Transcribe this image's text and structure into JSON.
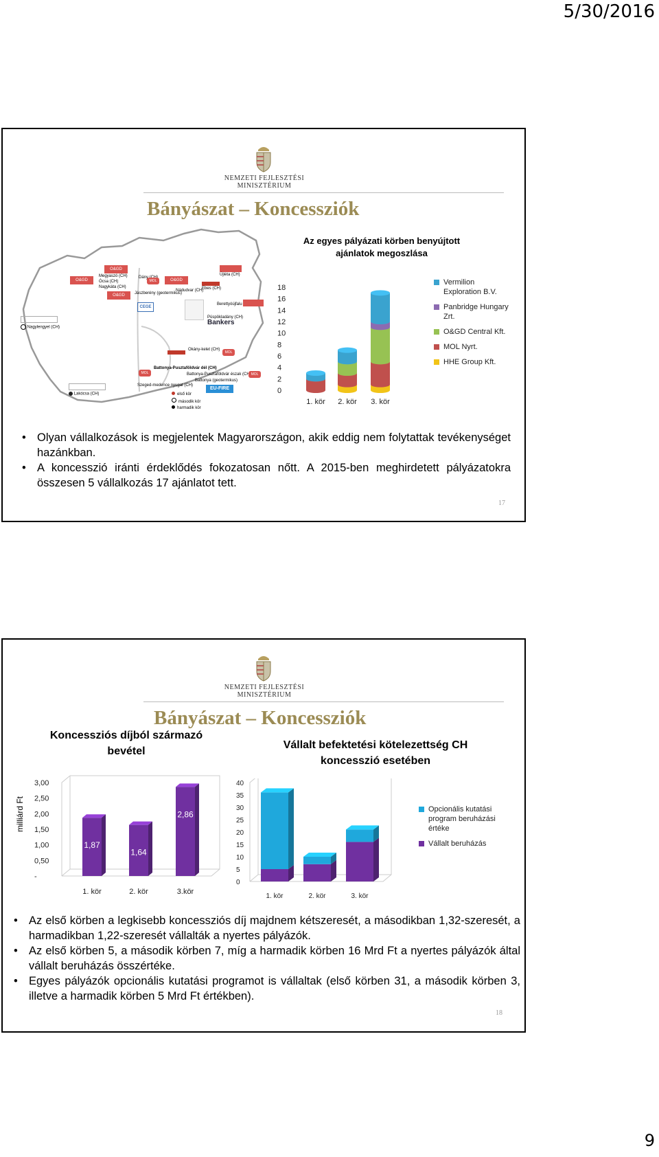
{
  "header": {
    "date": "5/30/2016"
  },
  "footer": {
    "page_number": "9"
  },
  "colors": {
    "title": "#9b8b54",
    "vermilion": "#3aa3cf",
    "panbridge": "#8c6bb1",
    "ogd": "#97c253",
    "mol": "#c0504d",
    "hhe": "#f2c418",
    "purple": "#7030a0",
    "cyan": "#1fa8dc"
  },
  "slide1": {
    "ministry": "NEMZETI FEJLESZTÉSI MINISZTÉRIUM",
    "title": "Bányászat – Koncessziók",
    "map": {
      "labels": [
        "Nagylengyel (CH)",
        "Lakócsa (CH)",
        "Megyaszó (CH)",
        "Ócsa (CH)",
        "Nagykáta (CH)",
        "Dány (CH)",
        "Jászberény (geotermikus)",
        "Nádudvar (CH)",
        "Ebes (CH)",
        "Újléta (CH)",
        "Berettyóújfalu (CH)",
        "Püspökladány (CH)",
        "Okány-kelet (CH)",
        "Battonya-Pusztaföldvár dél (CH)",
        "Battonya-Pusztaföldvár észak (CH)",
        "Battonya (geotermikus)",
        "Szeged-medence nyugat (CH)"
      ],
      "legend": [
        "első kör",
        "második kör",
        "harmadik kör"
      ],
      "logos": [
        "O&GD",
        "MOL",
        "CEGE",
        "Bankers",
        "EU-FIRE",
        "VERMILION",
        "HHE"
      ]
    },
    "chart_data": {
      "type": "bar",
      "stacked": true,
      "title": "Az egyes pályázati körben benyújtott ajánlatok megoszlása",
      "categories": [
        "1. kör",
        "2. kör",
        "3. kör"
      ],
      "series": [
        {
          "name": "HHE Group Kft.",
          "values": [
            0,
            1,
            1
          ],
          "color": "#f2c418"
        },
        {
          "name": "MOL Nyrt.",
          "values": [
            2,
            2,
            4
          ],
          "color": "#c0504d"
        },
        {
          "name": "O&GD Central Kft.",
          "values": [
            0,
            2,
            6
          ],
          "color": "#97c253"
        },
        {
          "name": "Panbridge Hungary Zrt.",
          "values": [
            0,
            0,
            1
          ],
          "color": "#8c6bb1"
        },
        {
          "name": "Vermilion Exploration B.V.",
          "values": [
            1,
            2,
            5
          ],
          "color": "#3aa3cf"
        }
      ],
      "yticks": [
        "18",
        "16",
        "14",
        "12",
        "10",
        "8",
        "6",
        "4",
        "2",
        "0"
      ],
      "ylim": [
        0,
        18
      ],
      "legend_position": "right"
    },
    "legend_lines": [
      [
        "Vermilion",
        "Exploration B.V."
      ],
      [
        "Panbridge Hungary",
        "Zrt."
      ],
      [
        "O&GD Central Kft."
      ],
      [
        "MOL Nyrt."
      ],
      [
        "HHE Group Kft."
      ]
    ],
    "bullets": [
      "Olyan vállalkozások is megjelentek Magyarországon, akik eddig nem folytattak tevékenységet hazánkban.",
      "A koncesszió iránti érdeklődés fokozatosan nőtt. A 2015-ben meghirdetett pályázatokra összesen 5 vállalkozás 17 ajánlatot tett."
    ],
    "slide_number": "17"
  },
  "slide2": {
    "ministry": "NEMZETI FEJLESZTÉSI MINISZTÉRIUM",
    "title": "Bányászat – Koncessziók",
    "chart_data": [
      {
        "type": "bar",
        "title": "Koncessziós díjból származó bevétel",
        "ylabel": "milliárd Ft",
        "categories": [
          "1. kör",
          "2. kör",
          "3.kör"
        ],
        "values": [
          1.87,
          1.64,
          2.86
        ],
        "data_labels": [
          "1,87",
          "1,64",
          "2,86"
        ],
        "yticks": [
          "3,00",
          "2,50",
          "2,00",
          "1,50",
          "1,00",
          "0,50",
          "-"
        ],
        "ylim": [
          0,
          3
        ],
        "color": "#7030a0"
      },
      {
        "type": "bar",
        "stacked": true,
        "title": "Vállalt befektetési kötelezettség CH koncesszió esetében",
        "categories": [
          "1. kör",
          "2. kör",
          "3. kör"
        ],
        "series": [
          {
            "name": "Vállalt beruházás",
            "values": [
              5,
              7,
              16
            ],
            "color": "#7030a0"
          },
          {
            "name": "Opcionális kutatási program beruházási értéke",
            "values": [
              31,
              3,
              5
            ],
            "color": "#1fa8dc"
          }
        ],
        "yticks": [
          "40",
          "35",
          "30",
          "25",
          "20",
          "15",
          "10",
          "5",
          "0"
        ],
        "ylim": [
          0,
          40
        ],
        "legend_position": "right"
      }
    ],
    "legend_lines": [
      [
        "Opcionális kutatási",
        "program beruházási",
        "értéke"
      ],
      [
        "Vállalt beruházás"
      ]
    ],
    "bullets": [
      "Az első körben a legkisebb koncessziós díj majdnem kétszeresét, a másodikban 1,32-szeresét, a harmadikban 1,22-szeresét vállalták a nyertes pályázók.",
      "Az első körben 5, a második körben 7, míg a harmadik körben 16 Mrd Ft a nyertes pályázók által vállalt beruházás összértéke.",
      "Egyes pályázók opcionális kutatási programot is vállaltak (első körben 31, a második körben 3, illetve a harmadik körben 5 Mrd Ft értékben)."
    ],
    "slide_number": "18"
  }
}
